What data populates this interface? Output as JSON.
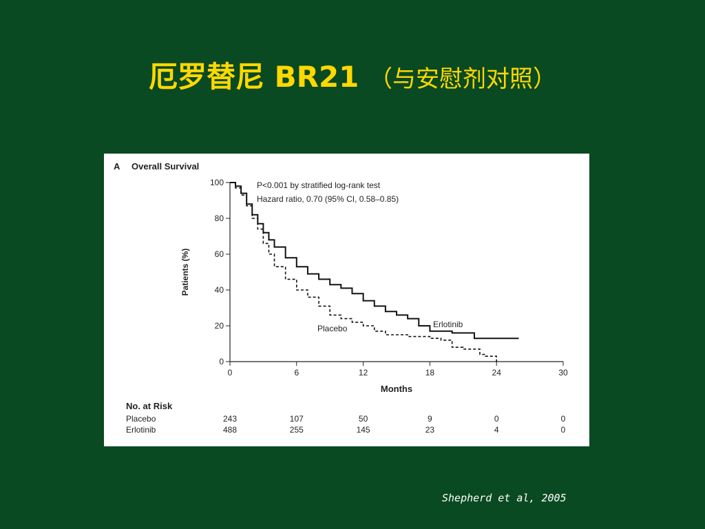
{
  "title": {
    "main": "厄罗替尼  BR21 ",
    "sub": "（与安慰剂对照）"
  },
  "citation": "Shepherd et al, 2005",
  "chart_data": {
    "type": "line",
    "panel_label": "A",
    "title": "Overall Survival",
    "xlabel": "Months",
    "ylabel": "Patients (%)",
    "xlim": [
      0,
      30
    ],
    "ylim": [
      0,
      100
    ],
    "x_ticks": [
      0,
      6,
      12,
      18,
      24,
      30
    ],
    "y_ticks": [
      0,
      20,
      40,
      60,
      80,
      100
    ],
    "annotations": [
      "P<0.001 by stratified log-rank test",
      "Hazard ratio, 0.70 (95% CI, 0.58–0.85)"
    ],
    "series": [
      {
        "name": "Erlotinib",
        "style": "solid",
        "color": "#111111",
        "x": [
          0,
          0.5,
          1,
          1.5,
          2,
          2.5,
          3,
          3.5,
          4,
          5,
          6,
          7,
          8,
          9,
          10,
          11,
          12,
          13,
          14,
          15,
          16,
          17,
          18,
          19,
          20,
          21,
          22,
          23,
          24,
          25,
          26
        ],
        "y": [
          100,
          98,
          94,
          88,
          82,
          77,
          72,
          68,
          64,
          58,
          53,
          49,
          46,
          43,
          41,
          38,
          34,
          31,
          28,
          26,
          24,
          20,
          17,
          17,
          16,
          16,
          13,
          13,
          13,
          13,
          13
        ]
      },
      {
        "name": "Placebo",
        "style": "dashed",
        "color": "#111111",
        "x": [
          0,
          0.5,
          1,
          1.5,
          2,
          2.5,
          3,
          3.5,
          4,
          5,
          6,
          7,
          8,
          9,
          10,
          11,
          12,
          13,
          14,
          15,
          16,
          17,
          18,
          19,
          20,
          21,
          22,
          22.5,
          23,
          24
        ],
        "y": [
          100,
          97,
          93,
          87,
          80,
          74,
          66,
          60,
          53,
          46,
          40,
          36,
          31,
          26,
          24,
          22,
          20,
          17,
          15,
          15,
          14,
          14,
          13,
          12,
          8,
          7,
          7,
          4,
          3,
          0
        ]
      }
    ],
    "risk_table": {
      "header": "No. at Risk",
      "rows": [
        {
          "label": "Placebo",
          "values": [
            "243",
            "107",
            "50",
            "9",
            "0",
            "0"
          ]
        },
        {
          "label": "Erlotinib",
          "values": [
            "488",
            "255",
            "145",
            "23",
            "4",
            "0"
          ]
        }
      ]
    }
  }
}
